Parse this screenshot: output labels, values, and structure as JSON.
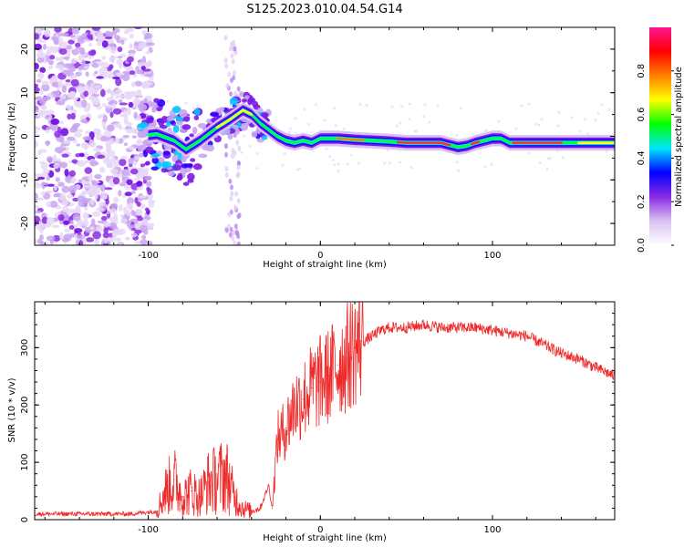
{
  "title": "S125.2023.010.04.54.G14",
  "chart_data": [
    {
      "type": "heatmap",
      "xlabel": "Height of straight line (km)",
      "ylabel": "Frequency (Hz)",
      "xlim": [
        -166,
        171
      ],
      "ylim": [
        -25,
        25
      ],
      "xticks": [
        -100,
        0,
        100
      ],
      "yticks": [
        -20,
        -10,
        0,
        10,
        20
      ],
      "colorbar": {
        "label": "Normalized spectral amplitude",
        "range": [
          0.0,
          1.0
        ],
        "ticks": [
          "0.0",
          "0.2",
          "0.4",
          "0.6",
          "0.8"
        ],
        "tick_values": [
          0.0,
          0.2,
          0.4,
          0.6,
          0.8
        ],
        "colors": [
          "#ffffff",
          "#d9c2f2",
          "#8a2be2",
          "#0000ff",
          "#00e5ff",
          "#00ff00",
          "#ffff00",
          "#ff8000",
          "#ff0000",
          "#ff1493"
        ]
      },
      "ridge": {
        "x": [
          -105,
          -95,
          -85,
          -78,
          -70,
          -60,
          -52,
          -45,
          -40,
          -35,
          -30,
          -25,
          -20,
          -15,
          -10,
          -5,
          0,
          10,
          20,
          30,
          40,
          50,
          60,
          70,
          75,
          80,
          85,
          90,
          95,
          100,
          105,
          110,
          120,
          130,
          140,
          150,
          160,
          171
        ],
        "y": [
          0,
          0.5,
          -1,
          -3,
          -1,
          2,
          4,
          6,
          5,
          3,
          1.5,
          0,
          -1,
          -1.5,
          -1,
          -1.5,
          -0.5,
          -0.5,
          -0.8,
          -1,
          -1.2,
          -1.5,
          -1.5,
          -1.5,
          -2,
          -2.5,
          -2.2,
          -1.5,
          -1,
          -0.5,
          -0.5,
          -1.5,
          -1.5,
          -1.5,
          -1.5,
          -1.5,
          -1.5,
          -1.5
        ]
      }
    },
    {
      "type": "line",
      "xlabel": "Height of straight line (km)",
      "ylabel": "SNR (10 * v/v)",
      "xlim": [
        -166,
        171
      ],
      "ylim": [
        0,
        380
      ],
      "xticks": [
        -100,
        0,
        100
      ],
      "yticks": [
        0,
        100,
        200,
        300
      ],
      "series": [
        {
          "color": "#ee2a2a",
          "x": [
            -166,
            -150,
            -130,
            -110,
            -95,
            -90,
            -85,
            -80,
            -75,
            -70,
            -65,
            -60,
            -55,
            -50,
            -45,
            -40,
            -35,
            -30,
            -28,
            -25,
            -20,
            -15,
            -10,
            -5,
            0,
            5,
            10,
            15,
            20,
            25,
            30,
            35,
            40,
            50,
            60,
            70,
            80,
            90,
            100,
            110,
            120,
            130,
            140,
            150,
            160,
            171
          ],
          "y": [
            10,
            10,
            10,
            10,
            15,
            50,
            70,
            40,
            50,
            40,
            65,
            70,
            80,
            40,
            20,
            15,
            20,
            60,
            20,
            140,
            160,
            200,
            210,
            230,
            240,
            250,
            270,
            280,
            300,
            310,
            320,
            330,
            335,
            335,
            340,
            335,
            335,
            335,
            330,
            325,
            320,
            305,
            290,
            280,
            265,
            250
          ]
        }
      ]
    }
  ]
}
